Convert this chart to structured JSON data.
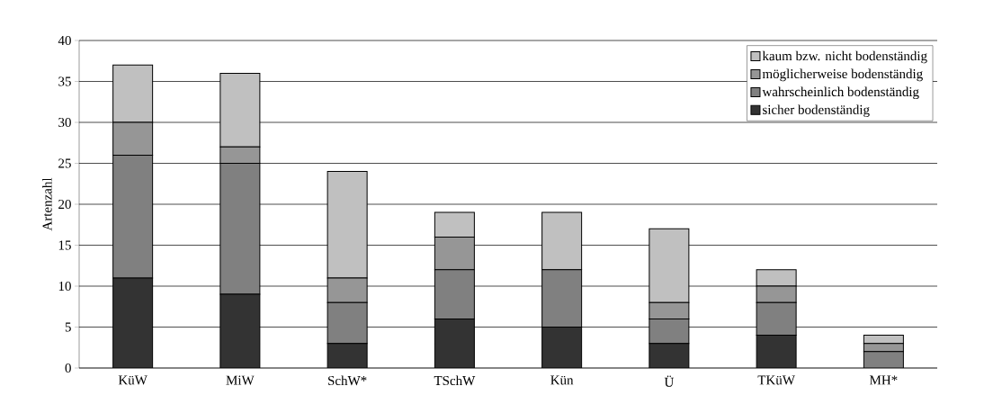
{
  "chart_data": {
    "type": "bar",
    "stacked": true,
    "ylabel": "Artenzahl",
    "categories": [
      "KüW",
      "MiW",
      "SchW*",
      "TSchW",
      "Kün",
      "Ü",
      "TKüW",
      "MH*"
    ],
    "series": [
      {
        "name": "sicher bodenständig",
        "color": "#333333",
        "values": [
          11,
          9,
          3,
          6,
          5,
          3,
          4,
          0
        ]
      },
      {
        "name": "wahrscheinlich bodenständig",
        "color": "#808080",
        "values": [
          15,
          16,
          5,
          6,
          7,
          3,
          4,
          2
        ]
      },
      {
        "name": "möglicherweise bodenständig",
        "color": "#969696",
        "values": [
          4,
          2,
          3,
          4,
          0,
          2,
          2,
          1
        ]
      },
      {
        "name": "kaum bzw. nicht bodenständig",
        "color": "#c0c0c0",
        "values": [
          7,
          9,
          13,
          3,
          7,
          9,
          2,
          1
        ]
      }
    ],
    "ylim": [
      0,
      40
    ],
    "yticks": [
      0,
      5,
      10,
      15,
      20,
      25,
      30,
      35,
      40
    ],
    "grid": "y",
    "legend": "top right"
  }
}
